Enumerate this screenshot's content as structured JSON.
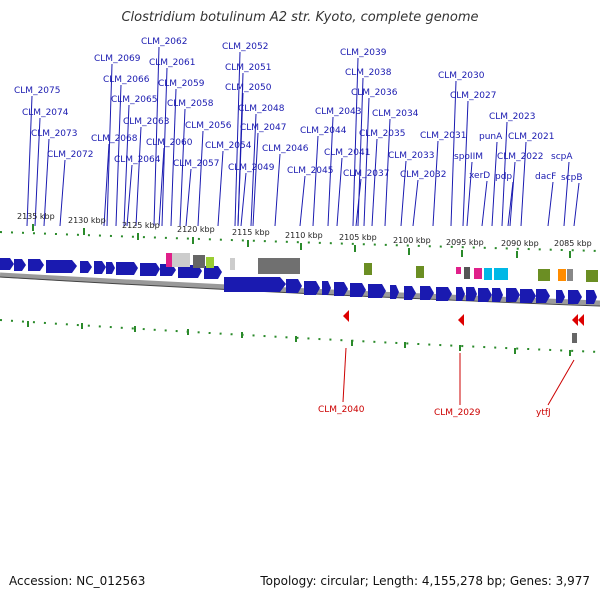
{
  "title": "Clostridium botulinum A2 str. Kyoto, complete genome",
  "footer": {
    "accession": "Accession: NC_012563",
    "topology": "Topology: circular; Length: 4,155,278 bp; Genes: 3,977"
  },
  "colors": {
    "forward_gene": "#1a1ab0",
    "reverse_gene": "#dd0000",
    "tick": "#2a8a2a",
    "backbone": "#9a9a9a",
    "label_blue": "#1a1ab0",
    "label_red": "#cc0000"
  },
  "scale": {
    "unit": "kbp",
    "ticks": [
      {
        "kbp": 2135,
        "label": "2135 kbp"
      },
      {
        "kbp": 2130,
        "label": "2130 kbp"
      },
      {
        "kbp": 2125,
        "label": "2125 kbp"
      },
      {
        "kbp": 2120,
        "label": "2120 kbp"
      },
      {
        "kbp": 2115,
        "label": "2115 kbp"
      },
      {
        "kbp": 2110,
        "label": "2110 kbp"
      },
      {
        "kbp": 2105,
        "label": "2105 kbp"
      },
      {
        "kbp": 2100,
        "label": "2100 kbp"
      },
      {
        "kbp": 2095,
        "label": "2095 kbp"
      },
      {
        "kbp": 2090,
        "label": "2090 kbp"
      },
      {
        "kbp": 2085,
        "label": "2085 kbp"
      }
    ]
  },
  "forward_genes": [
    "CLM_2075",
    "CLM_2074",
    "CLM_2073",
    "CLM_2072",
    "CLM_2069",
    "CLM_2068",
    "CLM_2066",
    "CLM_2065",
    "CLM_2064",
    "CLM_2063",
    "CLM_2062",
    "CLM_2061",
    "CLM_2060",
    "CLM_2059",
    "CLM_2058",
    "CLM_2057",
    "CLM_2056",
    "CLM_2054",
    "CLM_2052",
    "CLM_2051",
    "CLM_2050",
    "CLM_2049",
    "CLM_2048",
    "CLM_2047",
    "CLM_2046",
    "CLM_2045",
    "CLM_2044",
    "CLM_2043",
    "CLM_2041",
    "CLM_2039",
    "CLM_2038",
    "CLM_2037",
    "CLM_2036",
    "CLM_2035",
    "CLM_2034",
    "CLM_2033",
    "CLM_2032",
    "CLM_2031",
    "CLM_2030",
    "CLM_2027",
    "spoIIM",
    "punA",
    "xerD",
    "CLM_2023",
    "pdp",
    "CLM_2022",
    "CLM_2021",
    "dacF",
    "scpA",
    "scpB"
  ],
  "reverse_genes": [
    "CLM_2040",
    "CLM_2029",
    "ytfJ"
  ]
}
